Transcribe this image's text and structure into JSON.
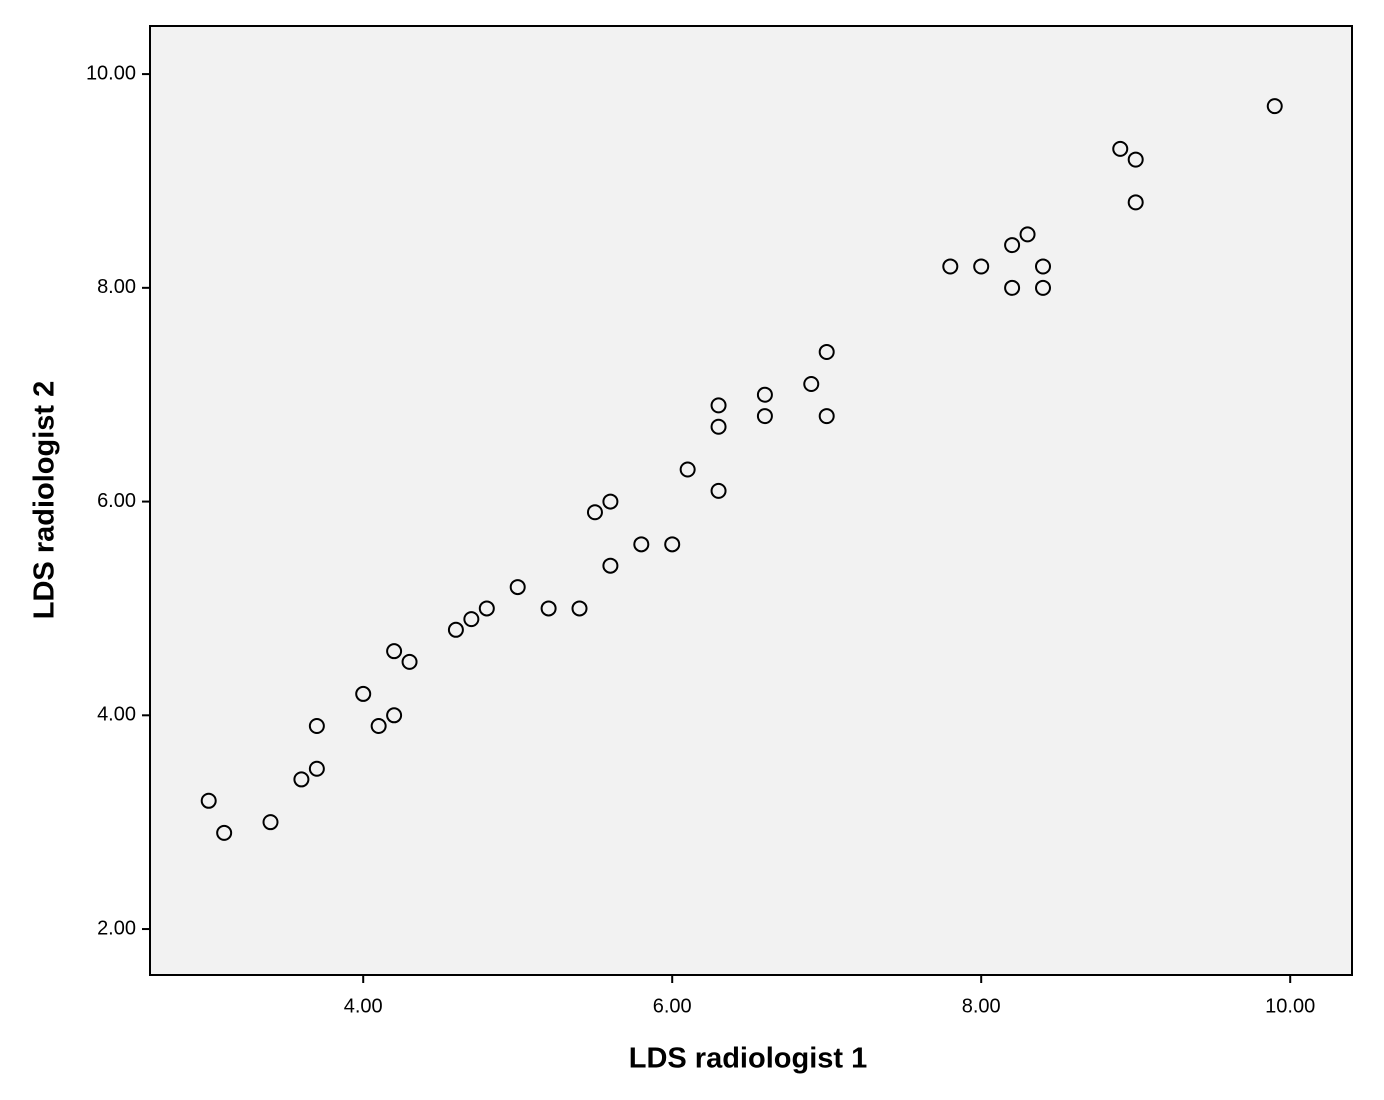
{
  "chart_data": {
    "type": "scatter",
    "x_label": "LDS radiologist 1",
    "y_label": "LDS radiologist 2",
    "x": [
      3.0,
      3.1,
      3.4,
      3.6,
      3.7,
      3.7,
      4.0,
      4.1,
      4.2,
      4.2,
      4.3,
      4.6,
      4.7,
      4.8,
      5.0,
      5.2,
      5.4,
      5.5,
      5.6,
      5.6,
      5.8,
      6.0,
      6.1,
      6.3,
      6.3,
      6.3,
      6.6,
      6.6,
      6.9,
      7.0,
      7.0,
      7.8,
      8.0,
      8.2,
      8.2,
      8.3,
      8.4,
      8.4,
      8.9,
      9.0,
      9.0,
      9.9
    ],
    "values": [
      3.2,
      2.9,
      3.0,
      3.4,
      3.5,
      3.9,
      4.2,
      3.9,
      4.0,
      4.6,
      4.5,
      4.8,
      4.9,
      5.0,
      5.2,
      5.0,
      5.0,
      5.9,
      6.0,
      5.4,
      5.6,
      5.6,
      6.3,
      6.1,
      6.7,
      6.9,
      6.8,
      7.0,
      7.1,
      7.4,
      6.8,
      8.2,
      8.2,
      8.0,
      8.4,
      8.5,
      8.2,
      8.0,
      9.3,
      9.2,
      8.8,
      9.7
    ],
    "color": "#000000",
    "background": "#f2f2f2",
    "xlim": [
      2.62,
      10.4
    ],
    "ylim": [
      1.57,
      10.45
    ],
    "xticks": [
      {
        "value": 4,
        "label": "4.00"
      },
      {
        "value": 6,
        "label": "6.00"
      },
      {
        "value": 8,
        "label": "8.00"
      },
      {
        "value": 10,
        "label": "10.00"
      }
    ],
    "yticks": [
      {
        "value": 2,
        "label": "2.00"
      },
      {
        "value": 4,
        "label": "4.00"
      },
      {
        "value": 6,
        "label": "6.00"
      },
      {
        "value": 8,
        "label": "8.00"
      },
      {
        "value": 10,
        "label": "10.00"
      }
    ],
    "grid": false
  }
}
